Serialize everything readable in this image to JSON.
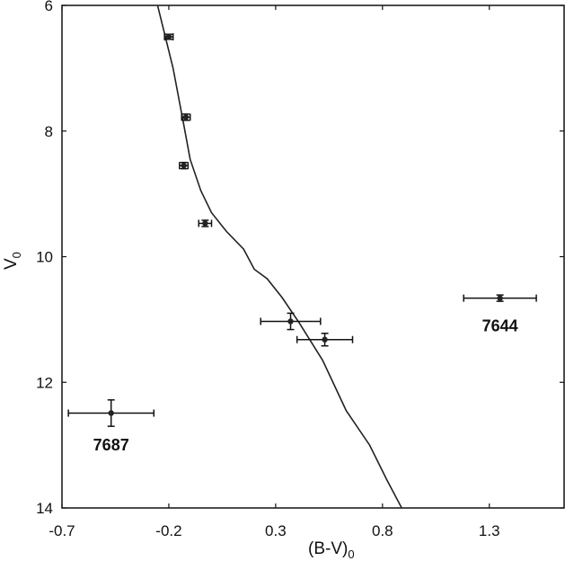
{
  "chart_data": {
    "type": "scatter",
    "xlabel": "(B-V)",
    "xlabel_sub": "0",
    "ylabel": "V",
    "ylabel_sub": "0",
    "xlim": [
      -0.7,
      1.65
    ],
    "ylim": [
      14,
      6
    ],
    "y_inverted": true,
    "grid": false,
    "x_ticks": [
      -0.7,
      -0.2,
      0.3,
      0.8,
      1.3
    ],
    "x_tick_labels": [
      "-0.7",
      "-0.2",
      "0.3",
      "0.8",
      "1.3"
    ],
    "y_ticks": [
      6,
      8,
      10,
      12,
      14
    ],
    "y_tick_labels": [
      "6",
      "8",
      "10",
      "12",
      "14"
    ],
    "series": [
      {
        "type": "scatter",
        "points": [
          {
            "x": -0.2,
            "y": 6.5,
            "xerr": 0.02,
            "yerr": 0.04
          },
          {
            "x": -0.12,
            "y": 7.78,
            "xerr": 0.02,
            "yerr": 0.05
          },
          {
            "x": -0.13,
            "y": 8.55,
            "xerr": 0.02,
            "yerr": 0.05
          },
          {
            "x": -0.03,
            "y": 9.47,
            "xerr": 0.03,
            "yerr": 0.05
          },
          {
            "x": 0.37,
            "y": 11.03,
            "xerr": 0.14,
            "yerr": 0.13
          },
          {
            "x": 0.53,
            "y": 11.32,
            "xerr": 0.13,
            "yerr": 0.1
          },
          {
            "x": 1.35,
            "y": 10.66,
            "xerr": 0.17,
            "yerr": 0.05
          },
          {
            "x": -0.47,
            "y": 12.49,
            "xerr": 0.2,
            "yerr": 0.21
          }
        ]
      },
      {
        "type": "line",
        "points": [
          {
            "x": -0.26,
            "y": 5.9
          },
          {
            "x": -0.18,
            "y": 7.0
          },
          {
            "x": -0.13,
            "y": 7.9
          },
          {
            "x": -0.1,
            "y": 8.45
          },
          {
            "x": -0.05,
            "y": 8.95
          },
          {
            "x": 0.0,
            "y": 9.3
          },
          {
            "x": 0.07,
            "y": 9.6
          },
          {
            "x": 0.15,
            "y": 9.88
          },
          {
            "x": 0.2,
            "y": 10.2
          },
          {
            "x": 0.26,
            "y": 10.35
          },
          {
            "x": 0.33,
            "y": 10.65
          },
          {
            "x": 0.41,
            "y": 11.05
          },
          {
            "x": 0.52,
            "y": 11.65
          },
          {
            "x": 0.63,
            "y": 12.45
          },
          {
            "x": 0.74,
            "y": 13.0
          },
          {
            "x": 0.82,
            "y": 13.55
          },
          {
            "x": 0.89,
            "y": 14.0
          }
        ]
      }
    ],
    "annotations": [
      {
        "text": "7644",
        "x": 1.35,
        "y": 11.1
      },
      {
        "text": "7687",
        "x": -0.47,
        "y": 13.0
      }
    ]
  }
}
